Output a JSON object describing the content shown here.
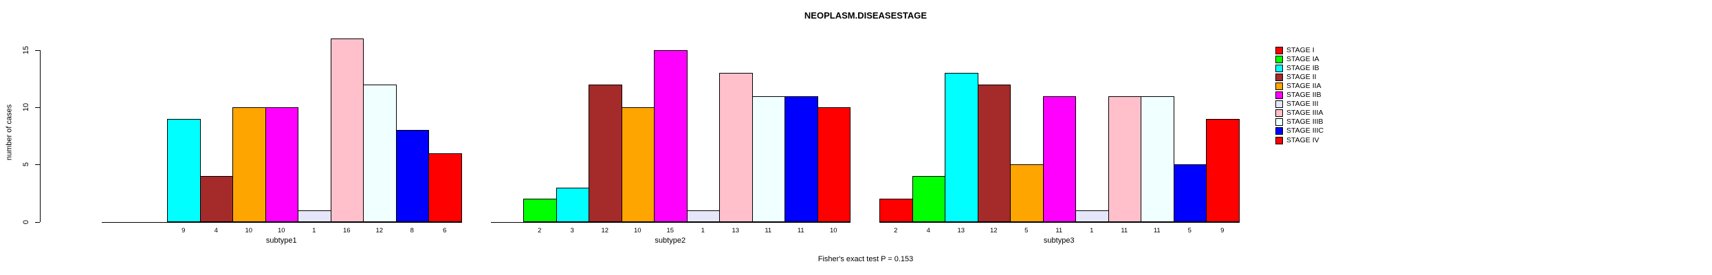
{
  "chart_data": {
    "type": "bar",
    "title": "NEOPLASM.DISEASESTAGE",
    "ylabel": "number of cases",
    "xlabel": "",
    "yticks": [
      0,
      5,
      10,
      15
    ],
    "ylim": [
      0,
      16.8
    ],
    "grid": false,
    "legend_position": "right",
    "bar_value_labels": true,
    "categories": [
      "subtype1",
      "subtype2",
      "subtype3"
    ],
    "series": [
      {
        "name": "STAGE I",
        "color": "#FF0000",
        "values": [
          0,
          0,
          2
        ]
      },
      {
        "name": "STAGE IA",
        "color": "#00FF00",
        "values": [
          0,
          2,
          4
        ]
      },
      {
        "name": "STAGE IB",
        "color": "#00FFFF",
        "values": [
          9,
          3,
          13
        ]
      },
      {
        "name": "STAGE II",
        "color": "#A52A2A",
        "values": [
          4,
          12,
          12
        ]
      },
      {
        "name": "STAGE IIA",
        "color": "#FFA500",
        "values": [
          10,
          10,
          5
        ]
      },
      {
        "name": "STAGE IIB",
        "color": "#FF00FF",
        "values": [
          10,
          15,
          11
        ]
      },
      {
        "name": "STAGE III",
        "color": "#E6E6FA",
        "values": [
          1,
          1,
          1
        ]
      },
      {
        "name": "STAGE IIIA",
        "color": "#FFC0CB",
        "values": [
          16,
          13,
          11
        ]
      },
      {
        "name": "STAGE IIIB",
        "color": "#F0FFFF",
        "values": [
          12,
          11,
          11
        ]
      },
      {
        "name": "STAGE IIIC",
        "color": "#0000FF",
        "values": [
          8,
          11,
          5
        ]
      },
      {
        "name": "STAGE IV",
        "color": "#FF0000",
        "values": [
          6,
          10,
          9
        ]
      }
    ],
    "annotations": [
      "Fisher's exact test P = 0.153"
    ]
  }
}
